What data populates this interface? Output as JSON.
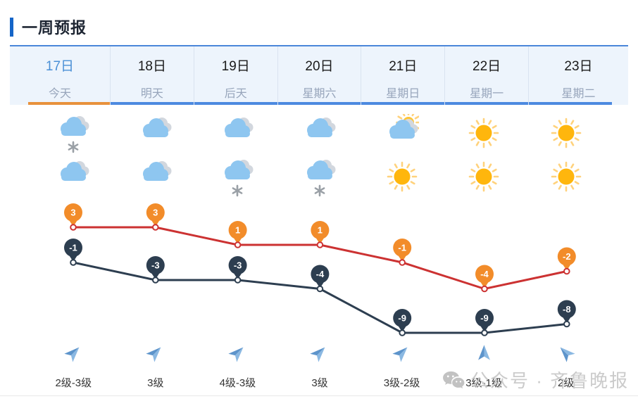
{
  "header": {
    "title": "一周预报"
  },
  "tabs": {
    "items": [
      {
        "date": "17日",
        "day": "今天",
        "active": true
      },
      {
        "date": "18日",
        "day": "明天",
        "active": false
      },
      {
        "date": "19日",
        "day": "后天",
        "active": false
      },
      {
        "date": "20日",
        "day": "星期六",
        "active": false
      },
      {
        "date": "21日",
        "day": "星期日",
        "active": false
      },
      {
        "date": "22日",
        "day": "星期一",
        "active": false
      },
      {
        "date": "23日",
        "day": "星期二",
        "active": false
      }
    ]
  },
  "weather": {
    "day_icons": [
      "snow",
      "cloudy",
      "cloudy",
      "cloudy",
      "partly-sunny",
      "sunny",
      "sunny"
    ],
    "night_icons": [
      "cloudy",
      "cloudy",
      "snow",
      "snow",
      "sunny",
      "sunny",
      "sunny"
    ]
  },
  "chart_data": {
    "type": "line",
    "categories": [
      "17日",
      "18日",
      "19日",
      "20日",
      "21日",
      "22日",
      "23日"
    ],
    "series": [
      {
        "name": "high",
        "values": [
          3,
          3,
          1,
          1,
          -1,
          -4,
          -2
        ],
        "line_color": "#cc3232",
        "marker_color": "#f28c2a"
      },
      {
        "name": "low",
        "values": [
          -1,
          -3,
          -3,
          -4,
          -9,
          -9,
          -8
        ],
        "line_color": "#2d3e50",
        "marker_color": "#2d3e50"
      }
    ],
    "unit": "°C",
    "ylim": [
      -11,
      4
    ],
    "axes_visible": false,
    "grid": false,
    "legend": "none",
    "marker_style": "balloon-pin-with-value-label"
  },
  "wind": {
    "directions_deg": [
      45,
      45,
      45,
      45,
      45,
      0,
      -45
    ],
    "levels": [
      "2级-3级",
      "3级",
      "4级-3级",
      "3级",
      "3级-2级",
      "3级-1级",
      "2级"
    ]
  },
  "watermark": {
    "icon": "wechat-icon",
    "text": "公众号 · 齐鲁晚报"
  },
  "colors": {
    "accent_blue": "#1565c8",
    "tab_background": "#edf4fc",
    "tab_underline_blue": "#4d8ae0",
    "tab_underline_active_orange": "#e8913c",
    "tab_active_text": "#4a90d6",
    "high_line": "#cc3232",
    "high_marker": "#f28c2a",
    "low_line": "#2d3e50",
    "cloud_blue": "#8ec6f0",
    "cloud_gray": "#d2d7de",
    "sun_core": "#ffb60d",
    "sun_ray": "#ffd27c",
    "snow_gray": "#9aa0a6",
    "wind_arrow_blue": "#6ba3d8",
    "watermark_gray": "#c9c9c9"
  }
}
